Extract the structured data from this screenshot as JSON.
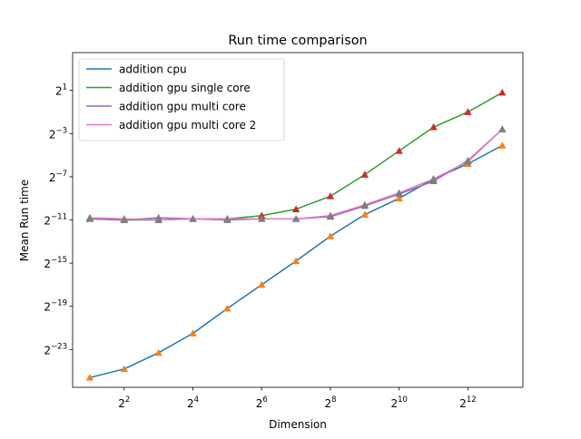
{
  "chart_data": {
    "type": "line",
    "title": "Run time comparison",
    "xlabel": "Dimension",
    "ylabel": "Mean Run time",
    "x_scale": "log2",
    "y_scale": "log2",
    "x": [
      2,
      4,
      8,
      16,
      32,
      64,
      128,
      256,
      512,
      1024,
      2048,
      4096,
      8192
    ],
    "xlim_log2": [
      0.5,
      13.6
    ],
    "ylim_log2": [
      -26.5,
      4.5
    ],
    "xticks": [
      {
        "exp": 2,
        "base": "2",
        "sup": "2"
      },
      {
        "exp": 4,
        "base": "2",
        "sup": "4"
      },
      {
        "exp": 6,
        "base": "2",
        "sup": "6"
      },
      {
        "exp": 8,
        "base": "2",
        "sup": "8"
      },
      {
        "exp": 10,
        "base": "2",
        "sup": "10"
      },
      {
        "exp": 12,
        "base": "2",
        "sup": "12"
      }
    ],
    "yticks": [
      {
        "exp": 1,
        "base": "2",
        "sup": "1"
      },
      {
        "exp": -3,
        "base": "2",
        "sup": "−3"
      },
      {
        "exp": -7,
        "base": "2",
        "sup": "−7"
      },
      {
        "exp": -11,
        "base": "2",
        "sup": "−11"
      },
      {
        "exp": -15,
        "base": "2",
        "sup": "−15"
      },
      {
        "exp": -19,
        "base": "2",
        "sup": "−19"
      },
      {
        "exp": -23,
        "base": "2",
        "sup": "−23"
      }
    ],
    "grid": false,
    "legend_position": "top-left",
    "series": [
      {
        "name": "addition cpu",
        "color": "#1f77b4",
        "marker_color": "#ff7f0e",
        "log2_values": [
          -25.6,
          -24.8,
          -23.3,
          -21.5,
          -19.2,
          -17.0,
          -14.8,
          -12.5,
          -10.5,
          -9.0,
          -7.2,
          -5.8,
          -4.1
        ]
      },
      {
        "name": "addition gpu single core",
        "color": "#2ca02c",
        "marker_color": "#d62728",
        "log2_values": [
          -10.9,
          -11.0,
          -11.0,
          -10.9,
          -10.9,
          -10.6,
          -10.0,
          -8.8,
          -6.8,
          -4.6,
          -2.4,
          -1.0,
          0.8
        ]
      },
      {
        "name": "addition gpu multi core",
        "color": "#9467bd",
        "marker_color": "#7f7f7f",
        "log2_values": [
          -10.9,
          -11.0,
          -10.8,
          -10.9,
          -11.0,
          -10.9,
          -10.9,
          -10.7,
          -9.7,
          -8.6,
          -7.4,
          -5.5,
          -2.6
        ]
      },
      {
        "name": "addition gpu multi core 2",
        "color": "#e377c2",
        "marker_color": "#7f7f7f",
        "log2_values": [
          -10.8,
          -10.9,
          -11.0,
          -10.9,
          -10.9,
          -10.9,
          -10.9,
          -10.6,
          -9.6,
          -8.5,
          -7.2,
          -5.6,
          -2.6
        ]
      }
    ]
  }
}
